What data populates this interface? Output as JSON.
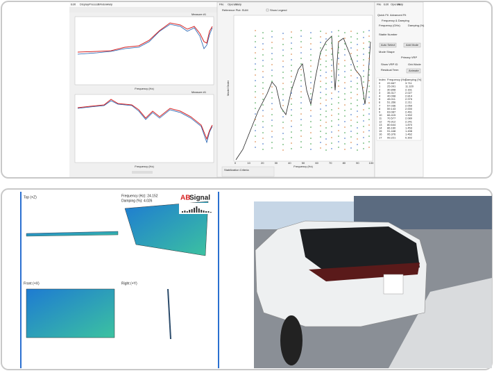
{
  "analysis_window": {
    "left_menu": [
      "Edit",
      "Display",
      "Process",
      "Window",
      "Help"
    ],
    "plot_top_title": "Measure #1",
    "plot_bottom_title": "Measure #1",
    "plot_top_x_label": "Frequency (Hz)",
    "plot_bottom_x_label": "Frequency (Hz)",
    "center_menu": [
      "File",
      "Operate",
      "Help"
    ],
    "reference_plot": "Reference Plot: SUM",
    "show_legend": "Show Legend",
    "stab_y_label": "Model Order",
    "stab_x_label": "Frequency (Hz)",
    "stab_x_ticks": [
      "0",
      "10",
      "20",
      "30",
      "40",
      "50",
      "60",
      "70",
      "80",
      "90",
      "100"
    ],
    "stabilization_label": "Stabilization Criteria",
    "right_menu": [
      "File",
      "Edit",
      "Operate",
      "Help"
    ],
    "tabs": [
      "Quick Fit",
      "Advanced Fit"
    ],
    "section_title": "Frequency & Damping",
    "field_frequency": "Frequency (GHz)",
    "field_damping": "Damping (%)",
    "field_stable": "Stable Number",
    "btn_auto": "Auto Select",
    "btn_add": "Add Mode",
    "mode_shape": "Mode Shape",
    "primary_vrp": "Primary VRP",
    "show_vrp": "Show VRP ID",
    "grid_mode": "Grid Mode",
    "residual": "Residual Term",
    "animate": "Animate",
    "table_header": [
      "Index",
      "Frequency (Hz)",
      "Damping (%)"
    ],
    "table_rows": [
      [
        "0",
        "22.667",
        "3.711"
      ],
      [
        "1",
        "25.091",
        "11.320"
      ],
      [
        "2",
        "30.898",
        "2.161"
      ],
      [
        "3",
        "35.317",
        "2.027"
      ],
      [
        "4",
        "40.098",
        "2.814"
      ],
      [
        "5",
        "45.011",
        "2.975"
      ],
      [
        "6",
        "51.356",
        "2.211"
      ],
      [
        "7",
        "57.036",
        "2.059"
      ],
      [
        "8",
        "59.143",
        "2.000"
      ],
      [
        "9",
        "63.087",
        "2.461"
      ],
      [
        "10",
        "66.415",
        "1.902"
      ],
      [
        "11",
        "70.577",
        "2.089"
      ],
      [
        "12",
        "75.912",
        "2.241"
      ],
      [
        "13",
        "80.644",
        "1.870"
      ],
      [
        "14",
        "86.160",
        "1.453"
      ],
      [
        "15",
        "91.448",
        "1.498"
      ],
      [
        "16",
        "95.376",
        "1.462"
      ],
      [
        "17",
        "99.221",
        "0.302"
      ]
    ]
  },
  "mode_view": {
    "top_view": "Top (+Z)",
    "front_view": "Front (+X)",
    "right_view": "Right (+Y)",
    "frequency": "Frequency (Hz): 24.152",
    "damping": "Damping (%): 4.026",
    "logo_ab": "AB",
    "logo_signal": "Signal"
  }
}
